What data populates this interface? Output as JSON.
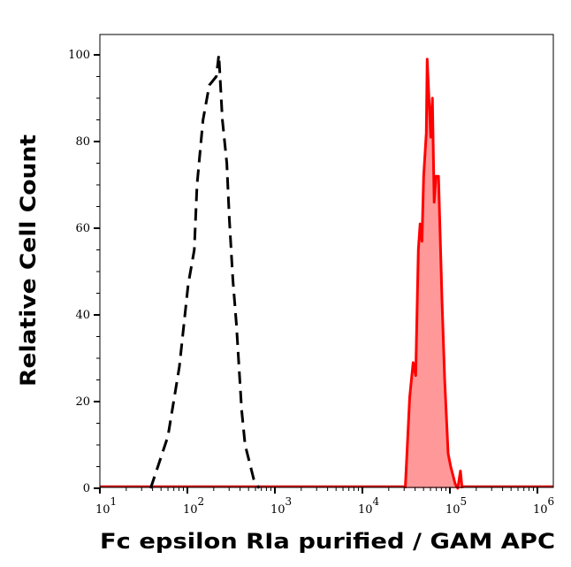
{
  "chart_data": {
    "type": "area",
    "xlabel": "Fc epsilon RIa purified / GAM APC",
    "ylabel": "Relative Cell Count",
    "xscale": "log",
    "xlim": [
      10,
      1550000
    ],
    "ylim": [
      0,
      104.5
    ],
    "x_ticks": [
      {
        "base": "10",
        "exp": "1",
        "value": 10
      },
      {
        "base": "10",
        "exp": "2",
        "value": 100
      },
      {
        "base": "10",
        "exp": "3",
        "value": 1000
      },
      {
        "base": "10",
        "exp": "4",
        "value": 10000
      },
      {
        "base": "10",
        "exp": "5",
        "value": 100000
      },
      {
        "base": "10",
        "exp": "6",
        "value": 1000000
      }
    ],
    "y_ticks": [
      "0",
      "20",
      "40",
      "60",
      "80",
      "100"
    ],
    "grid": false,
    "series": [
      {
        "style": "dashed line",
        "color": "#000000",
        "x": [
          38,
          46,
          60,
          81,
          102,
          120,
          129,
          151,
          178,
          214,
          229,
          251,
          282,
          302,
          331,
          363,
          389,
          417,
          457,
          575,
          661
        ],
        "y": [
          0,
          5,
          12,
          28,
          47,
          55,
          70,
          85,
          93,
          95,
          100,
          85,
          75,
          62,
          48,
          38,
          28,
          18,
          10,
          2,
          0
        ]
      },
      {
        "style": "filled line",
        "color": "#ff0000",
        "fill": "#ff9999",
        "x": [
          30900,
          34700,
          38000,
          40700,
          43600,
          45700,
          47900,
          50100,
          53700,
          55000,
          60300,
          63100,
          66100,
          69200,
          74100,
          81300,
          87100,
          95500,
          102000,
          115000,
          123000,
          132000,
          138000
        ],
        "y": [
          0,
          21,
          29,
          26,
          55,
          61,
          57,
          72,
          82,
          99,
          81,
          90,
          66,
          72,
          72,
          43,
          25,
          8,
          5,
          1,
          0,
          4,
          0
        ]
      }
    ]
  }
}
